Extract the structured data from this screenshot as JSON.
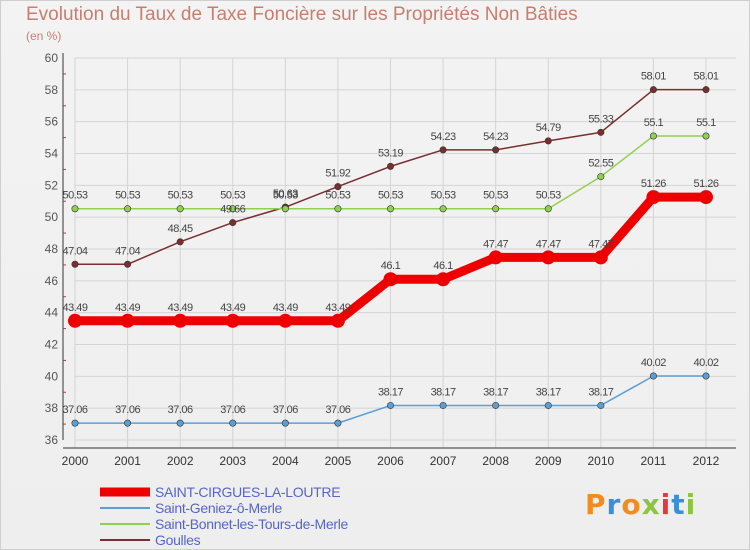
{
  "title": "Evolution du Taux de Taxe Foncière sur les Propriétés Non Bâties",
  "unit": "(en %)",
  "logo": "Proxiti",
  "chart_data": {
    "type": "line",
    "title": "Evolution du Taux de Taxe Foncière sur les Propriétés Non Bâties",
    "ylabel": "(en %)",
    "xlabel": "",
    "x": [
      "2000",
      "2001",
      "2002",
      "2003",
      "2004",
      "2005",
      "2006",
      "2007",
      "2008",
      "2009",
      "2010",
      "2011",
      "2012"
    ],
    "ylim": [
      36,
      60
    ],
    "yticks": [
      36,
      38,
      40,
      42,
      44,
      46,
      48,
      50,
      52,
      54,
      56,
      58,
      60
    ],
    "grid": true,
    "legend_position": "bottom-left",
    "series": [
      {
        "name": "SAINT-CIRGUES-LA-LOUTRE",
        "color": "#ee0000",
        "values": [
          43.49,
          43.49,
          43.49,
          43.49,
          43.49,
          43.49,
          46.1,
          46.1,
          47.47,
          47.47,
          47.47,
          51.26,
          51.26
        ],
        "labels": [
          "43.49",
          "43.49",
          "43.49",
          "43.49",
          "43.49",
          "43.49",
          "46.1",
          "46.1",
          "47.47",
          "47.47",
          "47.47",
          "51.26",
          "51.26"
        ]
      },
      {
        "name": "Saint-Geniez-ô-Merle",
        "color": "#5b9fd6",
        "values": [
          37.06,
          37.06,
          37.06,
          37.06,
          37.06,
          37.06,
          38.17,
          38.17,
          38.17,
          38.17,
          38.17,
          40.02,
          40.02
        ],
        "labels": [
          "37.06",
          "37.06",
          "37.06",
          "37.06",
          "37.06",
          "37.06",
          "38.17",
          "38.17",
          "38.17",
          "38.17",
          "38.17",
          "40.02",
          "40.02"
        ]
      },
      {
        "name": "Saint-Bonnet-les-Tours-de-Merle",
        "color": "#8fd14f",
        "values": [
          50.53,
          50.53,
          50.53,
          50.53,
          50.53,
          50.53,
          50.53,
          50.53,
          50.53,
          50.53,
          52.55,
          55.1,
          55.1
        ],
        "labels": [
          "50.53",
          "50.53",
          "50.53",
          "50.53",
          "50.53",
          "50.53",
          "50.53",
          "50.53",
          "50.53",
          "50.53",
          "52.55",
          "55.1",
          "55.1"
        ]
      },
      {
        "name": "Goulles",
        "color": "#7a2e2e",
        "values": [
          47.04,
          47.04,
          48.45,
          49.66,
          50.63,
          51.92,
          53.19,
          54.23,
          54.23,
          54.79,
          55.33,
          58.01,
          58.01
        ],
        "labels": [
          "47.04",
          "47.04",
          "48.45",
          "49.66",
          "50.63",
          "51.92",
          "53.19",
          "54.23",
          "54.23",
          "54.79",
          "55.33",
          "58.01",
          "58.01"
        ]
      }
    ]
  }
}
